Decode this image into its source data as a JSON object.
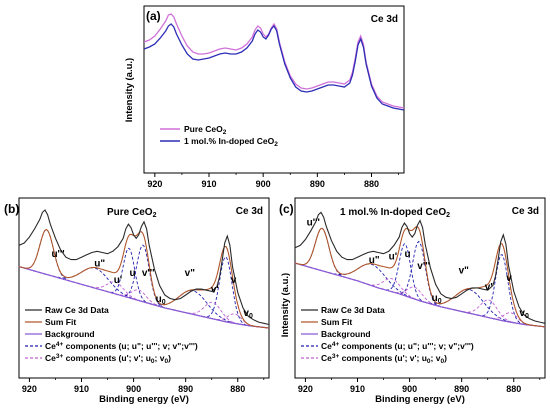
{
  "colors": {
    "pure": "#d071d9",
    "doped": "#2d2db6",
    "raw": "#2a2a2a",
    "sumfit": "#b0572c",
    "background": "#8a5cd6",
    "ce4": "#2020b0",
    "ce3": "#c060d0"
  },
  "chart_data": [
    {
      "id": "a",
      "type": "line",
      "panel_letter": "(a)",
      "corner_label": "Ce 3d",
      "xlabel": "",
      "ylabel": "Intensity (a.u.)",
      "xlim": [
        922,
        874
      ],
      "xticks": [
        920,
        910,
        900,
        890,
        880
      ],
      "legend_position": "lower-left",
      "series": [
        {
          "name": "Pure CeO2",
          "name_parts": {
            "main": "Pure CeO",
            "sub": "2"
          },
          "color_key": "pure",
          "x": [
            922,
            921,
            920,
            919,
            918,
            917.5,
            917,
            916.5,
            916,
            915,
            914,
            913,
            912,
            911,
            910,
            909,
            908,
            907,
            906,
            905,
            904,
            903,
            902,
            901.5,
            901,
            900.5,
            900,
            899.5,
            899,
            898.5,
            898,
            897.5,
            897,
            896,
            895,
            894,
            893,
            892,
            891,
            890,
            889,
            888,
            887,
            886,
            885,
            884,
            883.5,
            883,
            882.5,
            882,
            881.5,
            881,
            880,
            879,
            878,
            877,
            876,
            875,
            874
          ],
          "y": [
            0.72,
            0.74,
            0.78,
            0.85,
            0.93,
            0.99,
            1.0,
            0.97,
            0.9,
            0.78,
            0.68,
            0.62,
            0.6,
            0.6,
            0.61,
            0.63,
            0.65,
            0.66,
            0.65,
            0.64,
            0.66,
            0.7,
            0.77,
            0.84,
            0.88,
            0.86,
            0.8,
            0.77,
            0.8,
            0.86,
            0.9,
            0.85,
            0.72,
            0.52,
            0.38,
            0.3,
            0.26,
            0.25,
            0.26,
            0.28,
            0.3,
            0.32,
            0.32,
            0.31,
            0.3,
            0.34,
            0.42,
            0.56,
            0.72,
            0.78,
            0.7,
            0.52,
            0.3,
            0.18,
            0.12,
            0.1,
            0.08,
            0.07,
            0.06
          ]
        },
        {
          "name": "1 mol.% In-doped CeO2",
          "name_parts": {
            "main": "1 mol.% In-doped  CeO",
            "sub": "2"
          },
          "color_key": "doped",
          "x": [
            922,
            921,
            920,
            919,
            918,
            917.5,
            917,
            916.5,
            916,
            915,
            914,
            913,
            912,
            911,
            910,
            909,
            908,
            907,
            906,
            905,
            904,
            903,
            902,
            901.5,
            901,
            900.5,
            900,
            899.5,
            899,
            898.5,
            898,
            897.5,
            897,
            896,
            895,
            894,
            893,
            892,
            891,
            890,
            889,
            888,
            887,
            886,
            885,
            884,
            883.5,
            883,
            882.5,
            882,
            881.5,
            881,
            880,
            879,
            878,
            877,
            876,
            875,
            874
          ],
          "y": [
            0.65,
            0.67,
            0.7,
            0.76,
            0.83,
            0.88,
            0.9,
            0.87,
            0.8,
            0.69,
            0.6,
            0.55,
            0.54,
            0.55,
            0.56,
            0.58,
            0.6,
            0.61,
            0.6,
            0.6,
            0.62,
            0.66,
            0.73,
            0.8,
            0.84,
            0.82,
            0.77,
            0.75,
            0.79,
            0.85,
            0.88,
            0.83,
            0.7,
            0.5,
            0.36,
            0.27,
            0.23,
            0.22,
            0.23,
            0.25,
            0.27,
            0.29,
            0.29,
            0.28,
            0.27,
            0.31,
            0.39,
            0.53,
            0.69,
            0.75,
            0.67,
            0.5,
            0.28,
            0.16,
            0.1,
            0.08,
            0.06,
            0.05,
            0.04
          ]
        }
      ]
    },
    {
      "id": "b",
      "type": "line",
      "panel_letter": "(b)",
      "corner_label": "Ce 3d",
      "title_parts": {
        "main": "Pure CeO",
        "sub": "2"
      },
      "xlabel": "Binding energy (eV)",
      "ylabel": "",
      "xlim": [
        922,
        874
      ],
      "xticks": [
        920,
        910,
        900,
        890,
        880
      ],
      "legend_position": "lower-left",
      "legend": [
        {
          "key": "raw",
          "style": "solid",
          "label": "Raw Ce 3d Data"
        },
        {
          "key": "sumfit",
          "style": "solid",
          "label": "Sum Fit"
        },
        {
          "key": "background",
          "style": "solid",
          "label": "Background"
        },
        {
          "key": "ce4",
          "style": "dashed",
          "label_parts": {
            "pre": "Ce",
            "sup": "4+",
            "post": " components (u; u\"; u'''; v; v\";v''')"
          }
        },
        {
          "key": "ce3",
          "style": "dashed",
          "label_parts": {
            "pre": "Ce",
            "sup": "3+",
            "post": " components (u'; v'; u",
            "sub": "0",
            "post2": "; v",
            "sub2": "0",
            "post3": ")"
          }
        }
      ],
      "raw": {
        "x": [
          922,
          921,
          920,
          919,
          918,
          917.5,
          917,
          916.5,
          916,
          915,
          914,
          913,
          912,
          911,
          910,
          909,
          908,
          907,
          906,
          905,
          904,
          903,
          902,
          901.5,
          901,
          900.5,
          900,
          899.5,
          899,
          898.5,
          898,
          897.5,
          897,
          896,
          895,
          894,
          893,
          892,
          891,
          890,
          889,
          888,
          887,
          886,
          885,
          884,
          883.5,
          883,
          882.5,
          882,
          881.5,
          881,
          880,
          879,
          878,
          877,
          876,
          875,
          874
        ],
        "y": [
          0.7,
          0.72,
          0.77,
          0.84,
          0.92,
          0.98,
          1.0,
          0.96,
          0.88,
          0.76,
          0.66,
          0.6,
          0.58,
          0.58,
          0.6,
          0.62,
          0.64,
          0.65,
          0.64,
          0.63,
          0.65,
          0.69,
          0.76,
          0.84,
          0.88,
          0.85,
          0.79,
          0.76,
          0.79,
          0.86,
          0.9,
          0.84,
          0.7,
          0.5,
          0.36,
          0.28,
          0.25,
          0.24,
          0.25,
          0.28,
          0.31,
          0.33,
          0.33,
          0.32,
          0.31,
          0.35,
          0.43,
          0.57,
          0.72,
          0.78,
          0.7,
          0.52,
          0.3,
          0.17,
          0.1,
          0.07,
          0.05,
          0.04,
          0.03
        ]
      },
      "background": {
        "x": [
          922,
          918,
          914,
          910,
          906,
          902,
          898,
          894,
          890,
          886,
          882,
          878,
          874
        ],
        "y": [
          0.52,
          0.47,
          0.42,
          0.37,
          0.32,
          0.27,
          0.22,
          0.17,
          0.13,
          0.09,
          0.05,
          0.02,
          0.0
        ]
      },
      "ce4_components": [
        {
          "center": 916.7,
          "amp": 0.38,
          "width": 1.3
        },
        {
          "center": 907.4,
          "amp": 0.17,
          "width": 2.6
        },
        {
          "center": 900.9,
          "amp": 0.42,
          "width": 1.1
        },
        {
          "center": 898.2,
          "amp": 0.48,
          "width": 1.2
        },
        {
          "center": 888.6,
          "amp": 0.2,
          "width": 2.7
        },
        {
          "center": 882.3,
          "amp": 0.55,
          "width": 1.2
        }
      ],
      "ce3_components": [
        {
          "center": 903.5,
          "amp": 0.1,
          "width": 1.6
        },
        {
          "center": 899.0,
          "amp": 0.09,
          "width": 1.4
        },
        {
          "center": 884.8,
          "amp": 0.14,
          "width": 1.6
        },
        {
          "center": 880.6,
          "amp": 0.08,
          "width": 1.3
        }
      ],
      "peak_labels": [
        {
          "text": "u'''",
          "x": 914.5,
          "y": 0.6
        },
        {
          "text": "u\"",
          "x": 906.5,
          "y": 0.52
        },
        {
          "text": "u'",
          "x": 903.0,
          "y": 0.38
        },
        {
          "text": "u",
          "x": 900.2,
          "y": 0.44
        },
        {
          "text": "v'''",
          "x": 897.2,
          "y": 0.44
        },
        {
          "text": "u",
          "sub": "0",
          "x": 894.8,
          "y": 0.22
        },
        {
          "text": "v\"",
          "x": 889.2,
          "y": 0.44
        },
        {
          "text": "v'",
          "x": 884.4,
          "y": 0.3
        },
        {
          "text": "v",
          "x": 880.8,
          "y": 0.38
        },
        {
          "text": "v",
          "sub": "0",
          "x": 878.0,
          "y": 0.1
        }
      ]
    },
    {
      "id": "c",
      "type": "line",
      "panel_letter": "(c)",
      "corner_label": "Ce 3d",
      "title_parts": {
        "main": "1 mol.% In-doped CeO",
        "sub": "2"
      },
      "xlabel": "Binding energy (eV)",
      "ylabel": "Intensity (a.u.)",
      "xlim": [
        922,
        874
      ],
      "xticks": [
        920,
        910,
        900,
        890,
        880
      ],
      "legend_position": "lower-left",
      "legend": [
        {
          "key": "raw",
          "style": "solid",
          "label": "Raw Ce 3d Data"
        },
        {
          "key": "sumfit",
          "style": "solid",
          "label": "Sum Fit"
        },
        {
          "key": "background",
          "style": "solid",
          "label": "Background"
        },
        {
          "key": "ce4",
          "style": "dashed",
          "label_parts": {
            "pre": "Ce",
            "sup": "4+",
            "post": " components (u; u\"; u'''; v; v\";v''')"
          }
        },
        {
          "key": "ce3",
          "style": "dashed",
          "label_parts": {
            "pre": "Ce",
            "sup": "3+",
            "post": " components (u'; v'; u",
            "sub": "0",
            "post2": "; v",
            "sub2": "0",
            "post3": ")"
          }
        }
      ],
      "raw": {
        "x": [
          922,
          921,
          920,
          919,
          918,
          917.5,
          917,
          916.5,
          916,
          915,
          914,
          913,
          912,
          911,
          910,
          909,
          908,
          907,
          906,
          905,
          904,
          903,
          902,
          901.5,
          901,
          900.5,
          900,
          899.5,
          899,
          898.5,
          898,
          897.5,
          897,
          896,
          895,
          894,
          893,
          892,
          891,
          890,
          889,
          888,
          887,
          886,
          885,
          884,
          883.5,
          883,
          882.5,
          882,
          881.5,
          881,
          880,
          879,
          878,
          877,
          876,
          875,
          874
        ],
        "y": [
          0.68,
          0.7,
          0.75,
          0.82,
          0.9,
          0.96,
          0.98,
          0.94,
          0.86,
          0.74,
          0.65,
          0.6,
          0.58,
          0.58,
          0.6,
          0.62,
          0.64,
          0.65,
          0.64,
          0.63,
          0.65,
          0.7,
          0.77,
          0.85,
          0.89,
          0.86,
          0.8,
          0.77,
          0.8,
          0.87,
          0.91,
          0.85,
          0.71,
          0.51,
          0.37,
          0.29,
          0.26,
          0.25,
          0.26,
          0.29,
          0.32,
          0.34,
          0.34,
          0.33,
          0.32,
          0.36,
          0.44,
          0.58,
          0.73,
          0.79,
          0.71,
          0.53,
          0.31,
          0.18,
          0.11,
          0.08,
          0.06,
          0.05,
          0.04
        ]
      },
      "background": {
        "x": [
          922,
          918,
          914,
          910,
          906,
          902,
          898,
          894,
          890,
          886,
          882,
          878,
          874
        ],
        "y": [
          0.55,
          0.5,
          0.45,
          0.4,
          0.34,
          0.29,
          0.23,
          0.18,
          0.14,
          0.1,
          0.06,
          0.03,
          0.01
        ]
      },
      "ce4_components": [
        {
          "center": 916.8,
          "amp": 0.36,
          "width": 1.3
        },
        {
          "center": 907.2,
          "amp": 0.18,
          "width": 2.6
        },
        {
          "center": 900.9,
          "amp": 0.44,
          "width": 1.1
        },
        {
          "center": 898.2,
          "amp": 0.5,
          "width": 1.2
        },
        {
          "center": 888.5,
          "amp": 0.2,
          "width": 2.7
        },
        {
          "center": 882.3,
          "amp": 0.56,
          "width": 1.2
        }
      ],
      "ce3_components": [
        {
          "center": 903.4,
          "amp": 0.11,
          "width": 1.6
        },
        {
          "center": 899.0,
          "amp": 0.1,
          "width": 1.4
        },
        {
          "center": 884.8,
          "amp": 0.15,
          "width": 1.6
        },
        {
          "center": 880.6,
          "amp": 0.08,
          "width": 1.3
        }
      ],
      "peak_labels": [
        {
          "text": "u'''",
          "x": 918.5,
          "y": 0.87
        },
        {
          "text": "u\"",
          "x": 906.8,
          "y": 0.55
        },
        {
          "text": "u'",
          "x": 903.2,
          "y": 0.58
        },
        {
          "text": "u",
          "x": 900.4,
          "y": 0.6
        },
        {
          "text": "v'''",
          "x": 897.3,
          "y": 0.5
        },
        {
          "text": "u",
          "sub": "0",
          "x": 894.8,
          "y": 0.23
        },
        {
          "text": "v\"",
          "x": 889.6,
          "y": 0.46
        },
        {
          "text": "v'",
          "x": 884.8,
          "y": 0.32
        },
        {
          "text": "v",
          "x": 880.9,
          "y": 0.4
        },
        {
          "text": "v",
          "sub": "0",
          "x": 878.0,
          "y": 0.1
        }
      ]
    }
  ]
}
